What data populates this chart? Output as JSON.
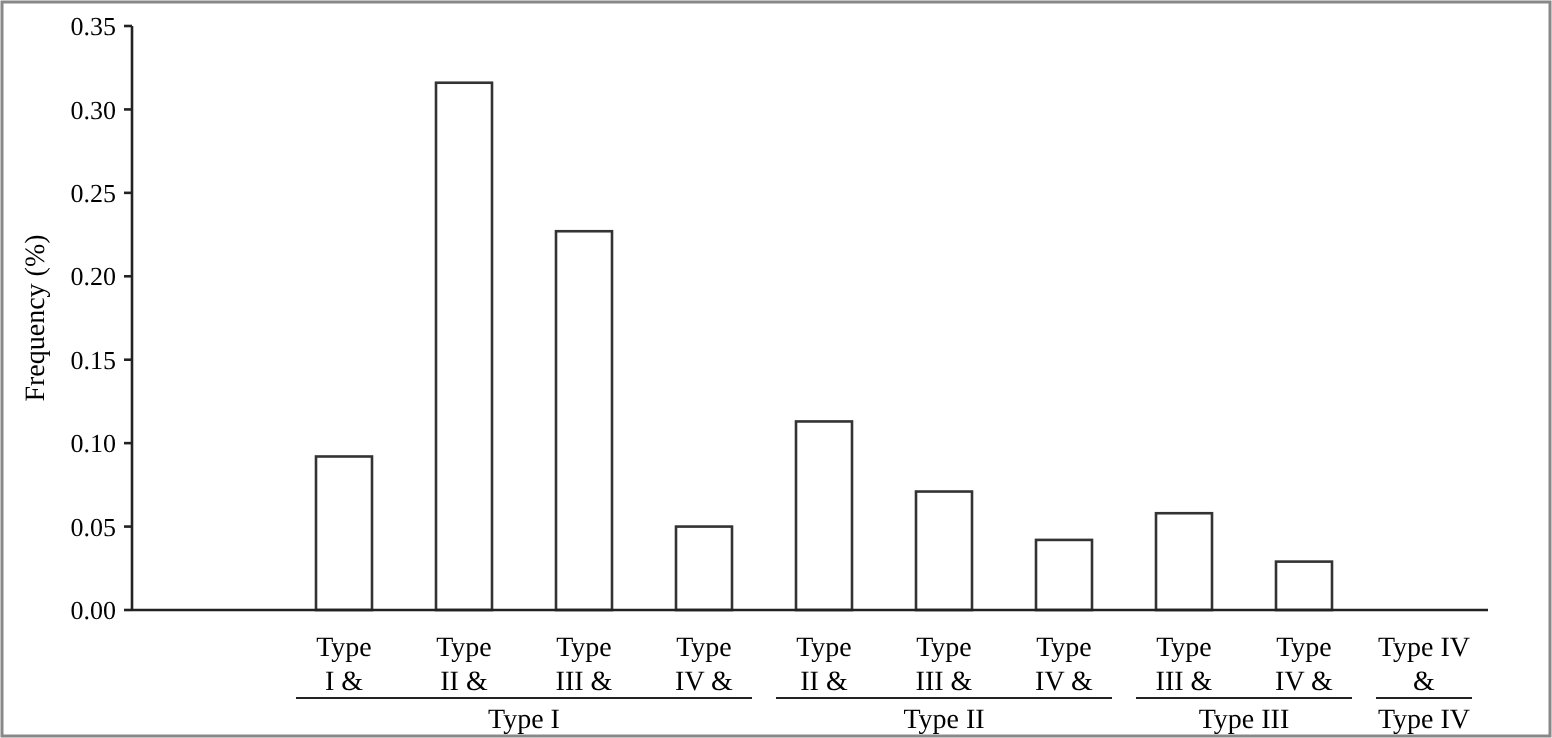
{
  "chart_data": {
    "type": "bar",
    "ylabel": "Frequency (%)",
    "categories": [
      null,
      "Type I &",
      "Type II &",
      "Type III &",
      "Type IV &",
      "Type II &",
      "Type III &",
      "Type IV &",
      "Type III &",
      "Type IV &",
      "Type IV &"
    ],
    "values": [
      null,
      0.092,
      0.316,
      0.227,
      0.05,
      0.113,
      0.071,
      0.042,
      0.058,
      0.029,
      null
    ],
    "color": "#ffffff",
    "ylim": [
      0,
      0.35
    ],
    "yticks": [
      {
        "value": 0,
        "label": "0.00"
      },
      {
        "value": 0.05,
        "label": "0.05"
      },
      {
        "value": 0.1,
        "label": "0.10"
      },
      {
        "value": 0.15,
        "label": "0.15"
      },
      {
        "value": 0.2,
        "label": "0.20"
      },
      {
        "value": 0.25,
        "label": "0.25"
      },
      {
        "value": 0.3,
        "label": "0.30"
      },
      {
        "value": 0.35,
        "label": "0.35"
      }
    ],
    "annotations": [
      "Type I",
      "Type II",
      "Type III",
      "Type IV"
    ],
    "grid": false
  }
}
